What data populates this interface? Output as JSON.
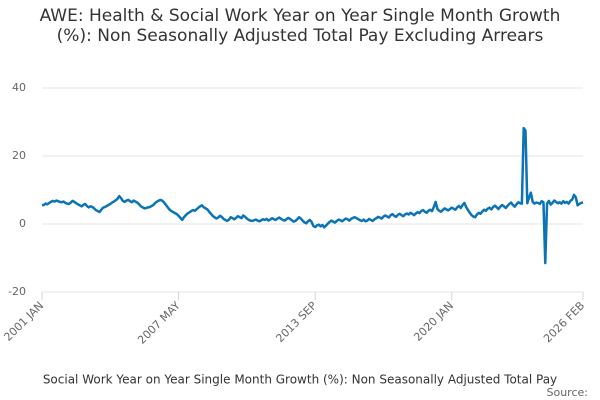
{
  "chart_data": {
    "type": "line",
    "title": "AWE: Health & Social Work Year on Year Single Month Growth (%): Non Seasonally Adjusted Total Pay Excluding Arrears",
    "legend_text": "Social Work Year on Year Single Month Growth (%): Non Seasonally Adjusted Total Pay",
    "source": "Source:",
    "categories": [
      "2001 JAN",
      null,
      null,
      null,
      null,
      null,
      null,
      null,
      null,
      null,
      null,
      null,
      null,
      null,
      null,
      null,
      null,
      null,
      null,
      null,
      null,
      null,
      null,
      null,
      null,
      null,
      null,
      null,
      null,
      null,
      null,
      null,
      null,
      null,
      null,
      null,
      null,
      null,
      null,
      null,
      null,
      null,
      null,
      null,
      null,
      null,
      null,
      null,
      null,
      null,
      null,
      null,
      null,
      null,
      null,
      null,
      null,
      null,
      null,
      null,
      null,
      null,
      null,
      null,
      null,
      null,
      null,
      null,
      null,
      null,
      null,
      null,
      null,
      null,
      null,
      null,
      "2007 MAY",
      null,
      null,
      null,
      null,
      null,
      null,
      null,
      null,
      null,
      null,
      null,
      null,
      null,
      null,
      null,
      null,
      null,
      null,
      null,
      null,
      null,
      null,
      null,
      null,
      null,
      null,
      null,
      null,
      null,
      null,
      null,
      null,
      null,
      null,
      null,
      null,
      null,
      null,
      null,
      null,
      null,
      null,
      null,
      null,
      null,
      null,
      null,
      null,
      null,
      null,
      null,
      null,
      null,
      null,
      null,
      null,
      null,
      null,
      null,
      null,
      null,
      null,
      null,
      null,
      null,
      null,
      null,
      null,
      null,
      null,
      null,
      null,
      null,
      null,
      null,
      "2013 SEP",
      null,
      null,
      null,
      null,
      null,
      null,
      null,
      null,
      null,
      null,
      null,
      null,
      null,
      null,
      null,
      null,
      null,
      null,
      null,
      null,
      null,
      null,
      null,
      null,
      null,
      null,
      null,
      null,
      null,
      null,
      null,
      null,
      null,
      null,
      null,
      null,
      null,
      null,
      null,
      null,
      null,
      null,
      null,
      null,
      null,
      null,
      null,
      null,
      null,
      null,
      null,
      null,
      null,
      null,
      null,
      null,
      null,
      null,
      null,
      null,
      null,
      null,
      null,
      null,
      null,
      null,
      null,
      null,
      null,
      null,
      null,
      null,
      null,
      null,
      null,
      "2020 JAN",
      null,
      null,
      null,
      null,
      null,
      null,
      null,
      null,
      null,
      null,
      null,
      null,
      null,
      null,
      null,
      null,
      null,
      null,
      null,
      null,
      null,
      null,
      null,
      null,
      null,
      null,
      null,
      null,
      null,
      null,
      null,
      null,
      null,
      null,
      null,
      null,
      null,
      null,
      null,
      null,
      null,
      null,
      null,
      null,
      null,
      null,
      null,
      null,
      null,
      null,
      null,
      null,
      null,
      null,
      null,
      null,
      null,
      null,
      null,
      null,
      null,
      null,
      null,
      null,
      null,
      null,
      null,
      null,
      null,
      null,
      null,
      null,
      "2026 FEB"
    ],
    "series": [
      {
        "name": "AWE: Health & Social Work Year on Year Single Month Growth (%): Non Seasonally Adjusted Total Pay Excluding Arrears",
        "color": "#0b74b7",
        "values": [
          5.5,
          5.6,
          6.0,
          5.8,
          6.2,
          6.5,
          6.8,
          6.6,
          6.9,
          6.7,
          6.5,
          6.4,
          6.6,
          6.2,
          6.0,
          5.9,
          6.3,
          6.8,
          6.5,
          6.1,
          5.8,
          5.5,
          5.2,
          5.6,
          5.9,
          5.3,
          4.9,
          5.2,
          5.0,
          4.6,
          4.1,
          3.8,
          3.5,
          4.2,
          4.8,
          5.0,
          5.3,
          5.6,
          5.9,
          6.3,
          6.6,
          7.0,
          7.4,
          8.2,
          7.6,
          6.8,
          6.5,
          6.9,
          7.1,
          6.7,
          6.4,
          6.9,
          6.6,
          6.3,
          5.8,
          5.2,
          4.9,
          4.6,
          4.7,
          4.9,
          5.0,
          5.3,
          5.6,
          6.2,
          6.6,
          6.9,
          7.1,
          6.8,
          6.3,
          5.6,
          4.9,
          4.2,
          3.8,
          3.5,
          3.2,
          2.9,
          2.4,
          1.8,
          1.2,
          2.0,
          2.6,
          3.1,
          3.4,
          3.8,
          4.1,
          3.9,
          4.3,
          4.8,
          5.2,
          5.5,
          4.9,
          4.6,
          4.3,
          3.6,
          3.0,
          2.4,
          2.0,
          1.6,
          1.9,
          2.4,
          2.1,
          1.5,
          1.2,
          0.9,
          1.3,
          2.0,
          1.7,
          1.4,
          1.8,
          2.3,
          2.0,
          1.7,
          2.5,
          2.1,
          1.6,
          1.2,
          1.0,
          0.9,
          1.1,
          1.3,
          1.0,
          0.8,
          1.1,
          1.4,
          1.2,
          1.5,
          1.0,
          1.3,
          1.7,
          1.4,
          1.2,
          1.6,
          1.9,
          1.5,
          1.2,
          1.0,
          1.4,
          1.8,
          1.5,
          1.1,
          0.7,
          0.9,
          1.4,
          2.0,
          1.6,
          1.0,
          0.5,
          0.2,
          0.8,
          1.2,
          0.6,
          -0.6,
          -0.9,
          -0.4,
          -0.2,
          -0.7,
          -0.3,
          -1.0,
          -0.5,
          0.1,
          0.6,
          1.0,
          0.7,
          0.4,
          0.9,
          1.3,
          1.1,
          0.8,
          1.2,
          1.6,
          1.4,
          1.0,
          1.5,
          1.8,
          2.0,
          1.7,
          1.4,
          1.1,
          0.9,
          1.3,
          0.8,
          1.0,
          1.5,
          1.2,
          0.9,
          1.4,
          1.7,
          2.1,
          1.9,
          1.6,
          2.2,
          2.5,
          2.2,
          1.9,
          2.6,
          2.9,
          2.4,
          2.1,
          2.7,
          3.0,
          2.6,
          2.3,
          2.8,
          3.1,
          2.8,
          3.3,
          3.0,
          2.6,
          3.1,
          3.5,
          3.2,
          3.8,
          4.1,
          3.6,
          3.3,
          3.9,
          4.2,
          3.8,
          5.0,
          6.5,
          4.4,
          3.9,
          3.6,
          4.1,
          4.6,
          4.3,
          4.0,
          4.4,
          4.8,
          4.5,
          4.2,
          4.9,
          5.3,
          4.7,
          5.6,
          6.2,
          5.0,
          4.1,
          3.3,
          2.6,
          2.2,
          2.0,
          2.8,
          3.3,
          3.0,
          3.7,
          4.2,
          3.9,
          4.5,
          4.8,
          4.3,
          5.0,
          5.4,
          4.9,
          4.4,
          5.1,
          5.6,
          5.2,
          4.7,
          5.3,
          5.9,
          6.3,
          5.6,
          5.1,
          5.8,
          6.4,
          6.1,
          6.0,
          28.2,
          27.5,
          6.1,
          7.8,
          9.2,
          6.5,
          6.0,
          6.3,
          6.2,
          5.9,
          6.7,
          6.4,
          -11.5,
          6.0,
          6.8,
          5.7,
          6.2,
          6.9,
          6.5,
          6.1,
          6.4,
          6.0,
          6.7,
          6.2,
          6.5,
          6.0,
          6.8,
          7.2,
          8.6,
          7.8,
          5.5,
          5.9,
          6.2,
          6.4
        ]
      }
    ],
    "ylim": [
      -20,
      40
    ],
    "yticks": [
      -20,
      0,
      20,
      40
    ],
    "grid": true
  }
}
